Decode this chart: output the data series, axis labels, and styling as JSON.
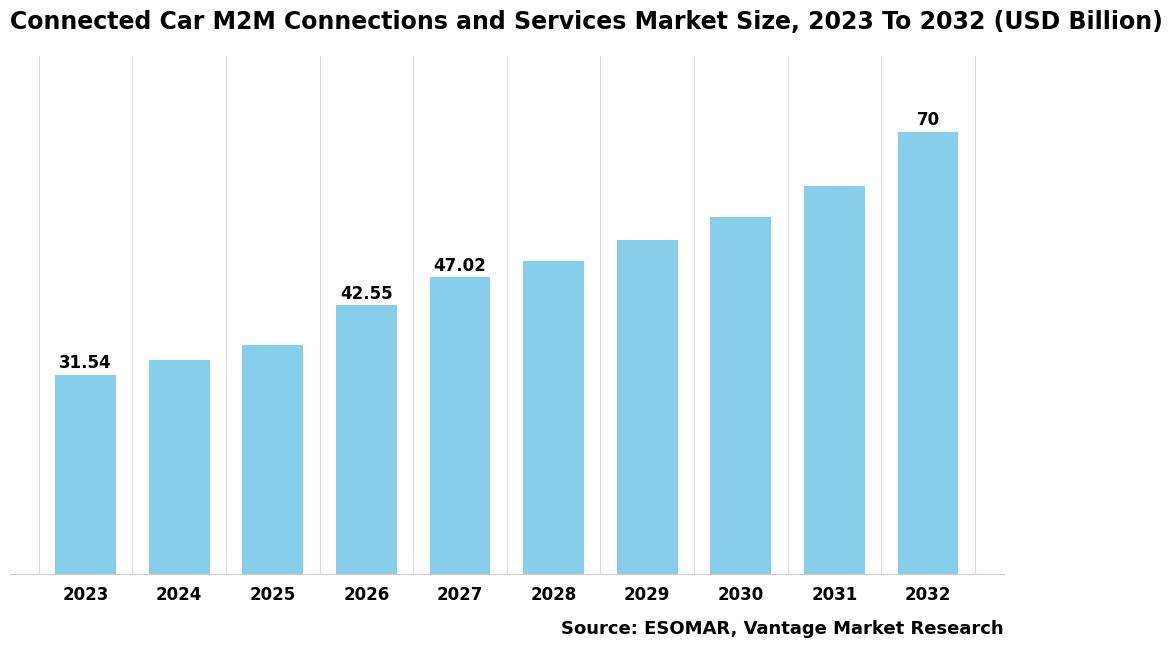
{
  "title": "Connected Car M2M Connections and Services Market Size, 2023 To 2032 (USD Billion)",
  "categories": [
    "2023",
    "2024",
    "2025",
    "2026",
    "2027",
    "2028",
    "2029",
    "2030",
    "2031",
    "2032"
  ],
  "values": [
    31.54,
    33.8,
    36.2,
    42.55,
    47.02,
    49.5,
    52.8,
    56.5,
    61.5,
    70.0
  ],
  "label_map": {
    "0": "31.54",
    "3": "42.55",
    "4": "47.02",
    "9": "70"
  },
  "bar_color": "#87CEEB",
  "background_color": "#ffffff",
  "title_fontsize": 17,
  "tick_fontsize": 12,
  "label_fontsize": 12,
  "source_text": "Source: ESOMAR, Vantage Market Research",
  "source_fontsize": 13,
  "ylim": [
    0,
    82
  ],
  "bar_width": 0.65
}
